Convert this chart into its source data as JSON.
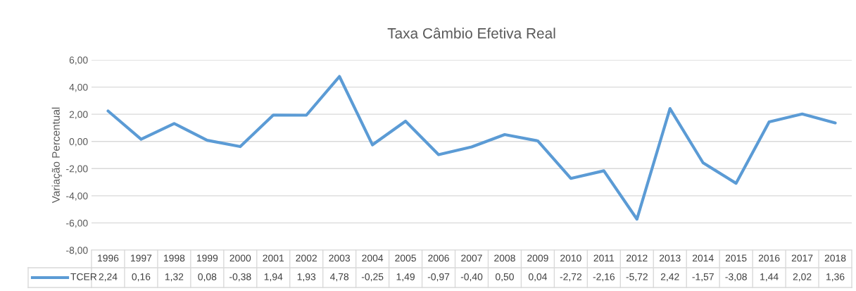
{
  "chart_data": {
    "type": "line",
    "title": "Taxa Câmbio Efetiva Real",
    "ylabel": "Variação Percentual",
    "categories": [
      "1996",
      "1997",
      "1998",
      "1999",
      "2000",
      "2001",
      "2002",
      "2003",
      "2004",
      "2005",
      "2006",
      "2007",
      "2008",
      "2009",
      "2010",
      "2011",
      "2012",
      "2013",
      "2014",
      "2015",
      "2016",
      "2017",
      "2018"
    ],
    "series": [
      {
        "name": "TCER",
        "color": "#5b9bd5",
        "values": [
          2.24,
          0.16,
          1.32,
          0.08,
          -0.38,
          1.94,
          1.93,
          4.78,
          -0.25,
          1.49,
          -0.97,
          -0.4,
          0.5,
          0.04,
          -2.72,
          -2.16,
          -5.72,
          2.42,
          -1.57,
          -3.08,
          1.44,
          2.02,
          1.36
        ],
        "value_labels": [
          "2,24",
          "0,16",
          "1,32",
          "0,08",
          "-0,38",
          "1,94",
          "1,93",
          "4,78",
          "-0,25",
          "1,49",
          "-0,97",
          "-0,40",
          "0,50",
          "0,04",
          "-2,72",
          "-2,16",
          "-5,72",
          "2,42",
          "-1,57",
          "-3,08",
          "1,44",
          "2,02",
          "1,36"
        ]
      }
    ],
    "ylim": [
      -8,
      6
    ],
    "yticks": [
      {
        "value": -8,
        "label": "-8,00"
      },
      {
        "value": -6,
        "label": "-6,00"
      },
      {
        "value": -4,
        "label": "-4,00"
      },
      {
        "value": -2,
        "label": "-2,00"
      },
      {
        "value": 0,
        "label": "0,00"
      },
      {
        "value": 2,
        "label": "2,00"
      },
      {
        "value": 4,
        "label": "4,00"
      },
      {
        "value": 6,
        "label": "6,00"
      }
    ],
    "grid": "y",
    "legend": "bottom",
    "marker": "none",
    "line_style": "solid"
  }
}
